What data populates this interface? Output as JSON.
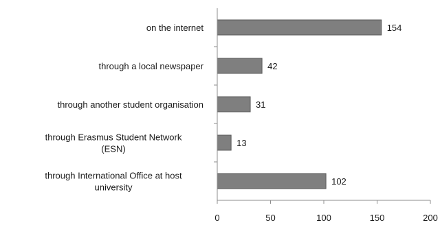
{
  "chart_data": {
    "type": "bar",
    "orientation": "horizontal",
    "categories": [
      [
        "on the internet"
      ],
      [
        "through a local newspaper"
      ],
      [
        "through another student organisation"
      ],
      [
        "through Erasmus Student Network",
        "(ESN)"
      ],
      [
        "through International Office at host",
        "university"
      ]
    ],
    "values": [
      154,
      42,
      31,
      13,
      102
    ],
    "data_labels": [
      "154",
      "42",
      "31",
      "13",
      "102"
    ],
    "xlim": [
      0,
      200
    ],
    "xticks": [
      0,
      50,
      100,
      150,
      200
    ],
    "xtick_labels": [
      "0",
      "50",
      "100",
      "150",
      "200"
    ],
    "grid": false,
    "legend": "none",
    "title": "",
    "xlabel": "",
    "ylabel": "",
    "bar_color": "#7f7f7f",
    "bar_edge_color": "#595959",
    "axis_color": "#8c8c8c"
  }
}
